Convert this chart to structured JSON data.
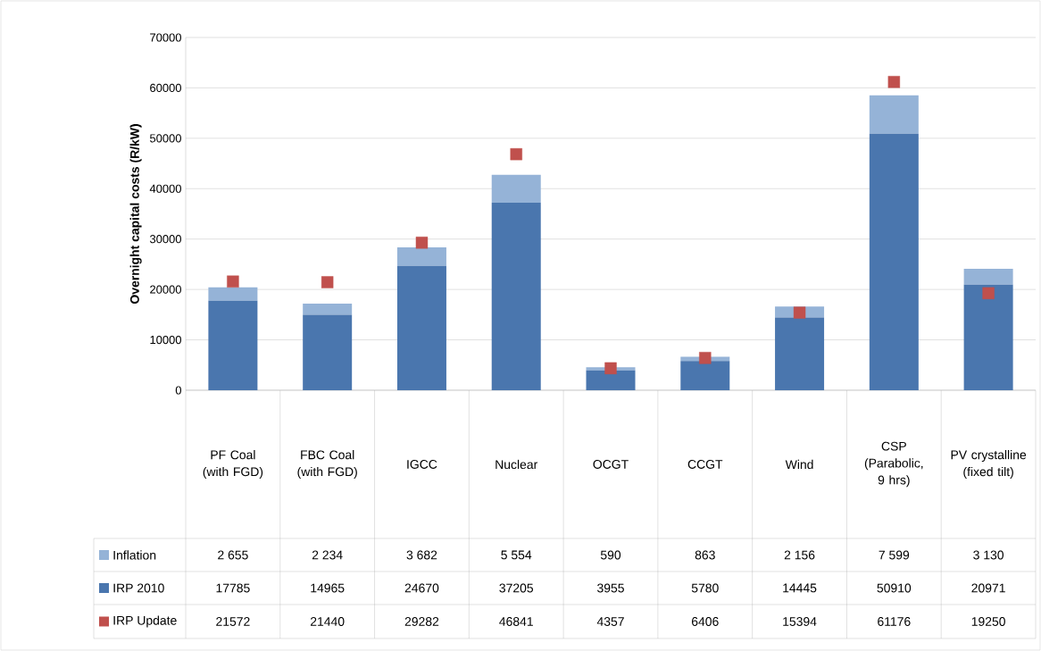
{
  "chart_data": {
    "type": "bar",
    "ylabel": "Overnight capital costs (R/kW)",
    "categories": [
      "PF Coal (with FGD)",
      "FBC Coal (with FGD)",
      "IGCC",
      "Nuclear",
      "OCGT",
      "CCGT",
      "Wind",
      "CSP (Parabolic, 9 hrs)",
      "PV crystalline (fixed tilt)"
    ],
    "series": [
      {
        "name": "IRP 2010",
        "color": "#4a76ae",
        "values": [
          17785,
          14965,
          24670,
          37205,
          3955,
          5780,
          14445,
          50910,
          20971
        ],
        "value_labels": [
          "17785",
          "14965",
          "24670",
          "37205",
          "3955",
          "5780",
          "14445",
          "50910",
          "20971"
        ]
      },
      {
        "name": "Inflation",
        "color": "#95b3d7",
        "values": [
          2655,
          2234,
          3682,
          5554,
          590,
          863,
          2156,
          7599,
          3130
        ],
        "value_labels": [
          "2 655",
          "2 234",
          "3 682",
          "5 554",
          "590",
          "863",
          "2 156",
          "7 599",
          "3 130"
        ]
      },
      {
        "name": "IRP Update",
        "type": "scatter",
        "marker": "square",
        "color": "#c0504d",
        "values": [
          21572,
          21440,
          29282,
          46841,
          4357,
          6406,
          15394,
          61176,
          19250
        ],
        "value_labels": [
          "21572",
          "21440",
          "29282",
          "46841",
          "4357",
          "6406",
          "15394",
          "61176",
          "19250"
        ]
      }
    ],
    "stacked": true,
    "ylim": [
      0,
      70000
    ],
    "yticks": [
      0,
      10000,
      20000,
      30000,
      40000,
      50000,
      60000,
      70000
    ],
    "grid": "y",
    "legend": "bottom"
  }
}
